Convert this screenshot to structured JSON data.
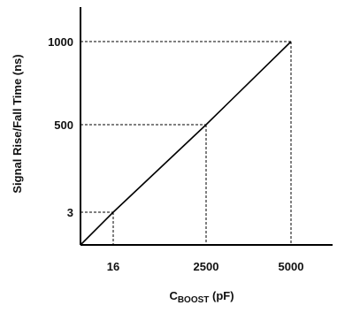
{
  "chart_data": {
    "type": "line",
    "xlabel": "C",
    "xlabel_subscript": "BOOST",
    "xlabel_unit": " (pF)",
    "ylabel": "Signal Rise/Fall Time (ns)",
    "x_ticks": [
      "16",
      "2500",
      "5000"
    ],
    "y_ticks": [
      "3",
      "500",
      "1000"
    ],
    "series": [
      {
        "points": [
          {
            "x": "0",
            "y": "0"
          },
          {
            "x": "16",
            "y": "3"
          },
          {
            "x": "2500",
            "y": "500"
          },
          {
            "x": "5000",
            "y": "1000"
          }
        ]
      }
    ],
    "grid": false,
    "dashed_guides": true,
    "colors": {
      "line": "#000000",
      "axis": "#000000",
      "guide": "#000000"
    }
  }
}
